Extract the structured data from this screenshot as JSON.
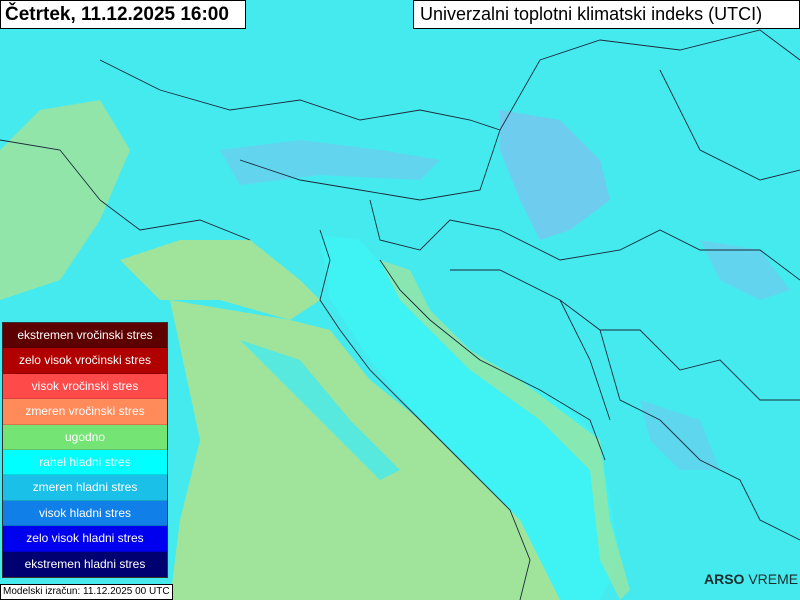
{
  "header": {
    "date_title": "Četrtek, 11.12.2025 16:00",
    "index_title": "Univerzalni toplotni klimatski indeks (UTCI)"
  },
  "legend": {
    "items": [
      {
        "label": "ekstremen vročinski stres",
        "color": "#5c0000"
      },
      {
        "label": "zelo visok vročinski stres",
        "color": "#b00000"
      },
      {
        "label": "visok vročinski stres",
        "color": "#ff4a4a"
      },
      {
        "label": "zmeren vročinski stres",
        "color": "#ff8a5a"
      },
      {
        "label": "ugodno",
        "color": "#74e474"
      },
      {
        "label": "rahel hladni stres",
        "color": "#00ffff"
      },
      {
        "label": "zmeren hladni stres",
        "color": "#1ac0e8"
      },
      {
        "label": "visok hladni stres",
        "color": "#1080e8"
      },
      {
        "label": "zelo visok hladni stres",
        "color": "#0000ee"
      },
      {
        "label": "ekstremen hladni stres",
        "color": "#000070"
      }
    ]
  },
  "footer": {
    "model_run": "Modelski izračun: 11.12.2025 00 UTC"
  },
  "logo": {
    "text_bold": "ARSO",
    "text": " VREME"
  },
  "map_colors": {
    "rahel_hladni": "#45eaee",
    "ugodno": "#a0e49c",
    "zmeren_hladni": "#78c4ee"
  }
}
